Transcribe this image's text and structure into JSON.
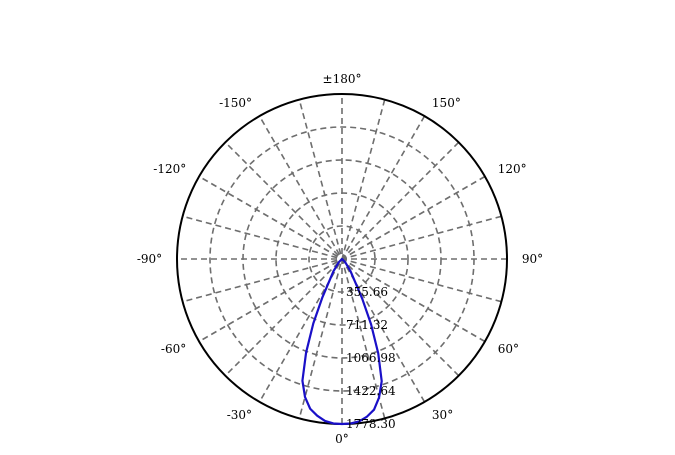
{
  "chart_data": {
    "type": "polar-line",
    "title": "",
    "angle_unit": "degrees",
    "zero_direction": "bottom",
    "angle_ticks": [
      {
        "angle": 0,
        "label": "0°"
      },
      {
        "angle": 30,
        "label": "30°"
      },
      {
        "angle": 60,
        "label": "60°"
      },
      {
        "angle": 90,
        "label": "90°"
      },
      {
        "angle": 120,
        "label": "120°"
      },
      {
        "angle": 150,
        "label": "150°"
      },
      {
        "angle": 180,
        "label": "±180°"
      },
      {
        "angle": -150,
        "label": "-150°"
      },
      {
        "angle": -120,
        "label": "-120°"
      },
      {
        "angle": -90,
        "label": "-90°"
      },
      {
        "angle": -60,
        "label": "-60°"
      },
      {
        "angle": -30,
        "label": "-30°"
      }
    ],
    "radial_ticks": [
      {
        "value": 355.66,
        "label": "355.66"
      },
      {
        "value": 711.32,
        "label": "711.32"
      },
      {
        "value": 1066.98,
        "label": "1066.98"
      },
      {
        "value": 1422.64,
        "label": "1422.64"
      },
      {
        "value": 1778.3,
        "label": "1778.30"
      }
    ],
    "rlim": [
      0,
      1778.3
    ],
    "grid": true,
    "spoke_step_deg": 15,
    "series": [
      {
        "color": "#1a10c8",
        "points": [
          {
            "angle": -90,
            "r": 0
          },
          {
            "angle": -60,
            "r": 0
          },
          {
            "angle": -45,
            "r": 50
          },
          {
            "angle": -35,
            "r": 160
          },
          {
            "angle": -30,
            "r": 270
          },
          {
            "angle": -27,
            "r": 470
          },
          {
            "angle": -24,
            "r": 760
          },
          {
            "angle": -21,
            "r": 1080
          },
          {
            "angle": -18,
            "r": 1380
          },
          {
            "angle": -15,
            "r": 1540
          },
          {
            "angle": -12,
            "r": 1650
          },
          {
            "angle": -9,
            "r": 1710
          },
          {
            "angle": -6,
            "r": 1755
          },
          {
            "angle": -3,
            "r": 1775
          },
          {
            "angle": 0,
            "r": 1778.3
          },
          {
            "angle": 3,
            "r": 1775
          },
          {
            "angle": 6,
            "r": 1760
          },
          {
            "angle": 9,
            "r": 1720
          },
          {
            "angle": 12,
            "r": 1660
          },
          {
            "angle": 15,
            "r": 1545
          },
          {
            "angle": 18,
            "r": 1385
          },
          {
            "angle": 21,
            "r": 1090
          },
          {
            "angle": 24,
            "r": 770
          },
          {
            "angle": 27,
            "r": 480
          },
          {
            "angle": 30,
            "r": 275
          },
          {
            "angle": 35,
            "r": 160
          },
          {
            "angle": 45,
            "r": 50
          },
          {
            "angle": 60,
            "r": 0
          },
          {
            "angle": 90,
            "r": 0
          }
        ]
      }
    ]
  }
}
